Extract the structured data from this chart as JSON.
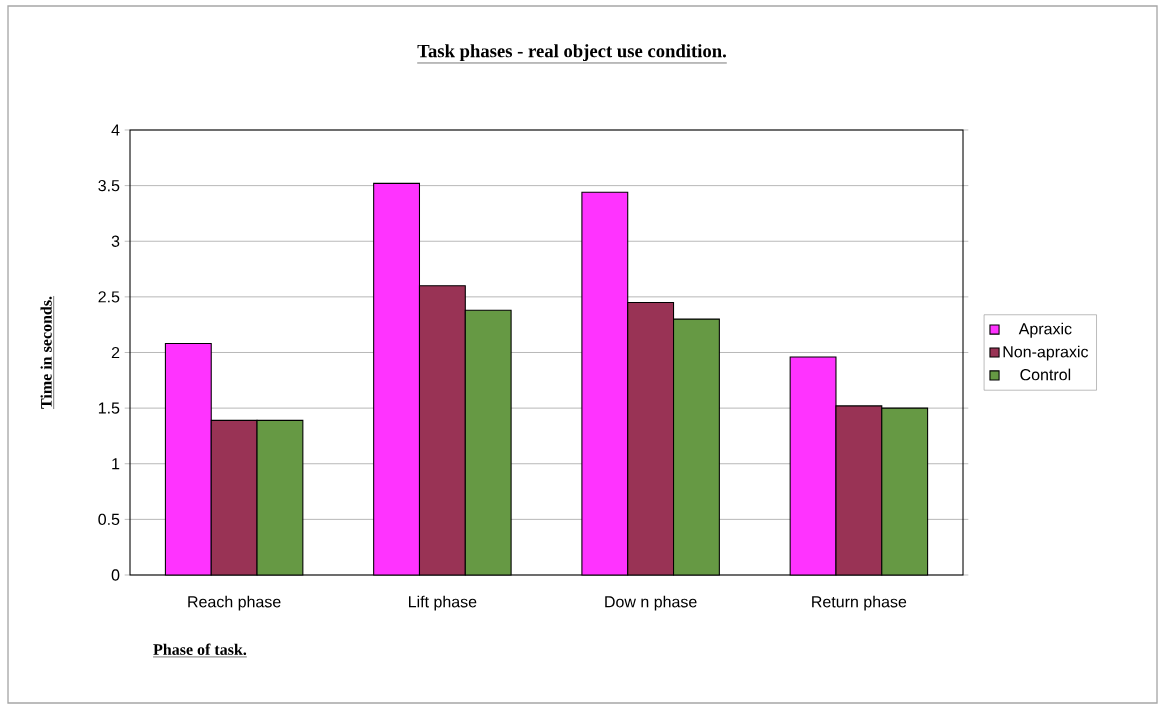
{
  "chart_data": {
    "type": "bar",
    "title": "Task phases - real object use condition.",
    "xlabel": "Phase of task.",
    "ylabel": "Time in seconds.",
    "categories": [
      "Reach phase",
      "Lift phase",
      "Dow n phase",
      "Return phase"
    ],
    "series": [
      {
        "name": "Apraxic",
        "color": "#ff33ff",
        "values": [
          2.08,
          3.52,
          3.44,
          1.96
        ]
      },
      {
        "name": "Non-apraxic",
        "color": "#993355",
        "values": [
          1.39,
          2.6,
          2.45,
          1.52
        ]
      },
      {
        "name": "Control",
        "color": "#669944",
        "values": [
          1.39,
          2.38,
          2.3,
          1.5
        ]
      }
    ],
    "ylim": [
      0,
      4
    ],
    "yticks": [
      0,
      0.5,
      1,
      1.5,
      2,
      2.5,
      3,
      3.5,
      4
    ],
    "grid": "y",
    "legend": "right"
  }
}
